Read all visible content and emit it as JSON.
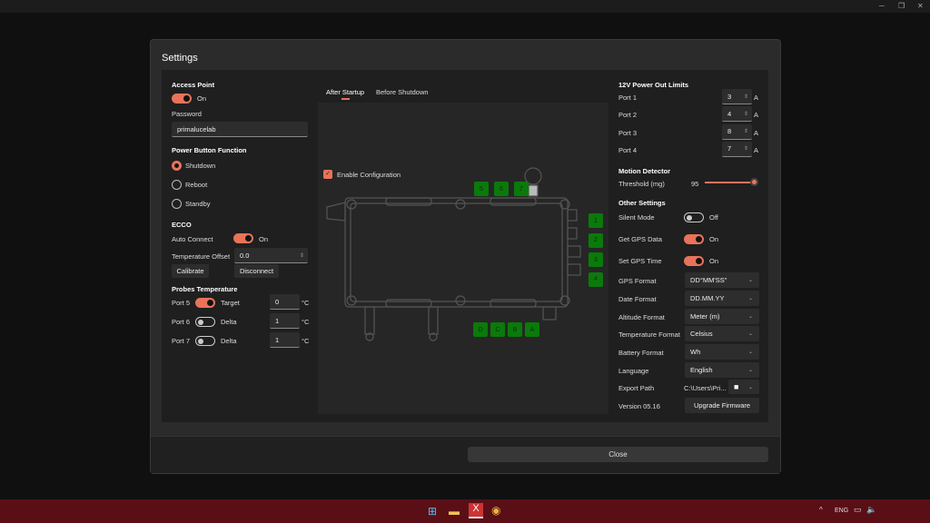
{
  "window": {
    "title": "Settings",
    "close_label": "Close"
  },
  "left": {
    "access_point": {
      "heading": "Access Point",
      "toggle_on": true,
      "toggle_label": "On",
      "password_label": "Password",
      "password_value": "primalucelab"
    },
    "power_button": {
      "heading": "Power Button Function",
      "options": [
        {
          "label": "Shutdown",
          "selected": true
        },
        {
          "label": "Reboot",
          "selected": false
        },
        {
          "label": "Standby",
          "selected": false
        }
      ]
    },
    "ecco": {
      "heading": "ECCO",
      "auto_connect_label": "Auto Connect",
      "auto_connect_on": true,
      "auto_connect_state": "On",
      "temp_offset_label": "Temperature Offset",
      "temp_offset_value": "0.0",
      "calibrate_label": "Calibrate",
      "disconnect_label": "Disconnect"
    },
    "probes": {
      "heading": "Probes Temperature",
      "unit": "°C",
      "rows": [
        {
          "port": "Port 5",
          "on": true,
          "mode": "Target",
          "value": "0"
        },
        {
          "port": "Port 6",
          "on": false,
          "mode": "Delta",
          "value": "1"
        },
        {
          "port": "Port 7",
          "on": false,
          "mode": "Delta",
          "value": "1"
        }
      ]
    }
  },
  "center": {
    "tabs": [
      {
        "label": "After Startup",
        "active": true
      },
      {
        "label": "Before Shutdown",
        "active": false
      }
    ],
    "enable_config_label": "Enable Configuration",
    "enable_config_checked": true,
    "top_ports": [
      "5",
      "6",
      "7"
    ],
    "right_ports": [
      "1",
      "2",
      "3",
      "4"
    ],
    "bottom_ports": [
      "D",
      "C",
      "B",
      "A"
    ],
    "port_color": "#0a7a0a"
  },
  "right": {
    "power_limits": {
      "heading": "12V Power Out Limits",
      "unit": "A",
      "ports": [
        {
          "label": "Port 1",
          "value": "3"
        },
        {
          "label": "Port 2",
          "value": "4"
        },
        {
          "label": "Port 3",
          "value": "8"
        },
        {
          "label": "Port 4",
          "value": "7"
        }
      ]
    },
    "motion": {
      "heading": "Motion Detector",
      "threshold_label": "Threshold (mg)",
      "threshold_value": "95",
      "slider_fraction": 0.95
    },
    "other": {
      "heading": "Other Settings",
      "toggles": [
        {
          "label": "Silent Mode",
          "on": false,
          "state": "Off"
        },
        {
          "label": "Get GPS Data",
          "on": true,
          "state": "On"
        },
        {
          "label": "Set GPS Time",
          "on": true,
          "state": "On"
        }
      ],
      "selects": [
        {
          "label": "GPS Format",
          "value": "DD°MM'SS\""
        },
        {
          "label": "Date Format",
          "value": "DD.MM.YY"
        },
        {
          "label": "Altitude Format",
          "value": "Meter (m)"
        },
        {
          "label": "Temperature Format",
          "value": "Celsius"
        },
        {
          "label": "Battery Format",
          "value": "Wh"
        },
        {
          "label": "Language",
          "value": "English"
        }
      ],
      "export_path_label": "Export Path",
      "export_path_value": "C:\\Users\\Pri...",
      "version": "Version 05.16",
      "upgrade_label": "Upgrade Firmware"
    }
  },
  "taskbar": {
    "lang": "ENG"
  },
  "accent": "#e8735a"
}
